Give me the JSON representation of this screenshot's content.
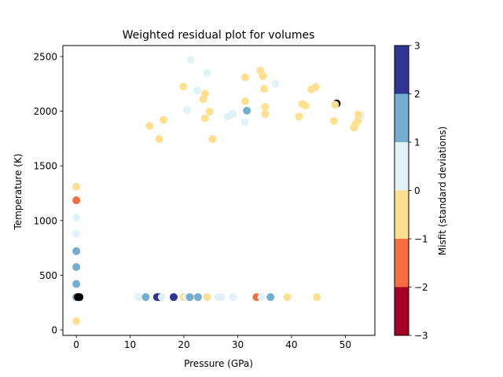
{
  "chart_data": {
    "type": "scatter",
    "title": "Weighted residual plot for volumes",
    "xlabel": "Pressure (GPa)",
    "ylabel": "Temperature (K)",
    "xlim": [
      -2.5,
      55.5
    ],
    "ylim": [
      -50,
      2600
    ],
    "xticks": [
      0,
      10,
      20,
      30,
      40,
      50
    ],
    "yticks": [
      0,
      500,
      1000,
      1500,
      2000,
      2500
    ],
    "grid": false,
    "colorbar": {
      "label": "Misfit (standard deviations)",
      "ticks": [
        -3,
        -2,
        -1,
        0,
        1,
        2,
        3
      ],
      "bands": [
        {
          "from": -3,
          "to": -2,
          "color": "#a50026"
        },
        {
          "from": -2,
          "to": -1,
          "color": "#f46d43"
        },
        {
          "from": -1,
          "to": 0,
          "color": "#fee090"
        },
        {
          "from": 0,
          "to": 1,
          "color": "#e0f3f8"
        },
        {
          "from": 1,
          "to": 2,
          "color": "#74add1"
        },
        {
          "from": 2,
          "to": 3,
          "color": "#313695"
        }
      ],
      "outlier_color": "#000000"
    },
    "points": [
      {
        "x": 0,
        "y": 80,
        "misfit": -0.5
      },
      {
        "x": 0,
        "y": 300,
        "misfit": 1.5
      },
      {
        "x": 0.3,
        "y": 300,
        "misfit": 3.5
      },
      {
        "x": 0.6,
        "y": 300,
        "misfit": 3.5
      },
      {
        "x": 0,
        "y": 420,
        "misfit": 1.5
      },
      {
        "x": 0,
        "y": 575,
        "misfit": 1.5
      },
      {
        "x": 0,
        "y": 720,
        "misfit": 1.5
      },
      {
        "x": 0,
        "y": 880,
        "misfit": 0.5
      },
      {
        "x": 0,
        "y": 1025,
        "misfit": 0.5
      },
      {
        "x": 0,
        "y": 1185,
        "misfit": -1.5
      },
      {
        "x": 0,
        "y": 1310,
        "misfit": -0.5
      },
      {
        "x": 11.5,
        "y": 300,
        "misfit": 0.5
      },
      {
        "x": 12.9,
        "y": 300,
        "misfit": 1.5
      },
      {
        "x": 15.0,
        "y": 300,
        "misfit": 2.5
      },
      {
        "x": 15.5,
        "y": 300,
        "misfit": 2.5
      },
      {
        "x": 15.9,
        "y": 300,
        "misfit": 0.5
      },
      {
        "x": 18.1,
        "y": 300,
        "misfit": 2.5
      },
      {
        "x": 19.9,
        "y": 300,
        "misfit": -0.5
      },
      {
        "x": 20.5,
        "y": 300,
        "misfit": 0.5
      },
      {
        "x": 21.1,
        "y": 300,
        "misfit": 1.5
      },
      {
        "x": 22.6,
        "y": 300,
        "misfit": 1.5
      },
      {
        "x": 24.3,
        "y": 300,
        "misfit": -0.5
      },
      {
        "x": 26.4,
        "y": 300,
        "misfit": 0.5
      },
      {
        "x": 27.0,
        "y": 300,
        "misfit": 0.5
      },
      {
        "x": 29.1,
        "y": 300,
        "misfit": 0.5
      },
      {
        "x": 33.5,
        "y": 300,
        "misfit": -1.5
      },
      {
        "x": 34.4,
        "y": 300,
        "misfit": 0.5
      },
      {
        "x": 36.1,
        "y": 300,
        "misfit": 1.5
      },
      {
        "x": 39.2,
        "y": 300,
        "misfit": -0.5
      },
      {
        "x": 44.7,
        "y": 300,
        "misfit": -0.5
      },
      {
        "x": 13.6,
        "y": 1865,
        "misfit": -0.5
      },
      {
        "x": 15.4,
        "y": 1745,
        "misfit": -0.5
      },
      {
        "x": 16.2,
        "y": 1920,
        "misfit": -0.5
      },
      {
        "x": 19.9,
        "y": 2225,
        "misfit": -0.5
      },
      {
        "x": 20.6,
        "y": 2010,
        "misfit": 0.5
      },
      {
        "x": 21.3,
        "y": 2470,
        "misfit": 0.5
      },
      {
        "x": 22.5,
        "y": 2190,
        "misfit": 0.5
      },
      {
        "x": 23.6,
        "y": 2110,
        "misfit": -0.5
      },
      {
        "x": 23.9,
        "y": 2160,
        "misfit": -0.5
      },
      {
        "x": 23.9,
        "y": 1935,
        "misfit": -0.5
      },
      {
        "x": 24.3,
        "y": 2350,
        "misfit": 0.5
      },
      {
        "x": 24.8,
        "y": 1995,
        "misfit": -0.5
      },
      {
        "x": 25.3,
        "y": 1745,
        "misfit": -0.5
      },
      {
        "x": 28.1,
        "y": 1950,
        "misfit": 0.5
      },
      {
        "x": 29.1,
        "y": 1975,
        "misfit": 0.5
      },
      {
        "x": 31.3,
        "y": 1900,
        "misfit": 0.5
      },
      {
        "x": 31.4,
        "y": 2310,
        "misfit": -0.5
      },
      {
        "x": 31.4,
        "y": 2090,
        "misfit": -0.5
      },
      {
        "x": 31.7,
        "y": 2005,
        "misfit": 1.5
      },
      {
        "x": 34.2,
        "y": 2370,
        "misfit": -0.5
      },
      {
        "x": 34.7,
        "y": 2320,
        "misfit": -0.5
      },
      {
        "x": 34.9,
        "y": 2205,
        "misfit": -0.5
      },
      {
        "x": 35.1,
        "y": 2040,
        "misfit": -0.5
      },
      {
        "x": 35.1,
        "y": 1975,
        "misfit": -0.5
      },
      {
        "x": 37.0,
        "y": 2250,
        "misfit": 0.5
      },
      {
        "x": 41.4,
        "y": 1950,
        "misfit": -0.5
      },
      {
        "x": 42.0,
        "y": 2065,
        "misfit": -0.5
      },
      {
        "x": 42.6,
        "y": 2050,
        "misfit": -0.5
      },
      {
        "x": 43.7,
        "y": 2200,
        "misfit": -0.5
      },
      {
        "x": 44.5,
        "y": 2220,
        "misfit": -0.5
      },
      {
        "x": 47.9,
        "y": 1910,
        "misfit": -0.5
      },
      {
        "x": 48.4,
        "y": 2070,
        "misfit": 3.5
      },
      {
        "x": 48.1,
        "y": 2060,
        "misfit": -0.5
      },
      {
        "x": 51.6,
        "y": 1850,
        "misfit": -0.5
      },
      {
        "x": 51.9,
        "y": 1880,
        "misfit": -0.5
      },
      {
        "x": 52.3,
        "y": 1910,
        "misfit": -0.5
      },
      {
        "x": 52.6,
        "y": 1945,
        "misfit": -0.5
      },
      {
        "x": 52.9,
        "y": 1960,
        "misfit": 0.5
      },
      {
        "x": 52.4,
        "y": 1970,
        "misfit": -0.5
      }
    ]
  }
}
